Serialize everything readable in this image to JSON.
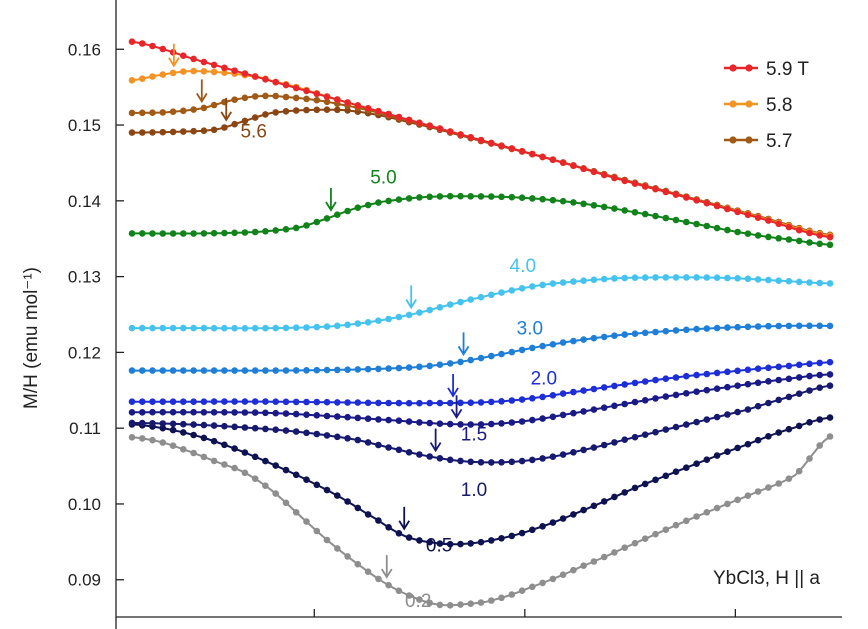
{
  "chart_data": {
    "type": "line",
    "ylabel": "M/H (emu mol⁻¹)",
    "annotation": "YbCl3, H || a",
    "ylim": [
      0.0835,
      0.1665
    ],
    "xlim": [
      0,
      1
    ],
    "yticks": [
      "0.09",
      "0.10",
      "0.11",
      "0.12",
      "0.13",
      "0.14",
      "0.15",
      "0.16"
    ],
    "legend": {
      "placement": "top-right",
      "entries": [
        "5.9 T",
        "5.8",
        "5.7"
      ]
    },
    "series": [
      {
        "name": "5.9 T",
        "color": "#e8262a",
        "label": "",
        "x": [
          0,
          0.1,
          0.2,
          0.3,
          0.4,
          0.5,
          0.6,
          0.7,
          0.8,
          0.9,
          1.0
        ],
        "y": [
          0.161,
          0.1584,
          0.1558,
          0.1532,
          0.1506,
          0.148,
          0.1455,
          0.1428,
          0.1403,
          0.1377,
          0.1352
        ]
      },
      {
        "name": "5.8",
        "color": "#f39323",
        "label": "",
        "x": [
          0,
          0.04,
          0.08,
          0.12,
          0.16,
          0.2,
          0.3,
          0.4,
          0.5,
          0.6,
          0.7,
          0.8,
          0.9,
          1.0
        ],
        "y": [
          0.1559,
          0.1566,
          0.1571,
          0.157,
          0.1566,
          0.1558,
          0.1532,
          0.1506,
          0.148,
          0.1455,
          0.1428,
          0.1403,
          0.1378,
          0.1354
        ],
        "transition_x": 0.06
      },
      {
        "name": "5.7",
        "color": "#a05a16",
        "label": "",
        "x": [
          0,
          0.05,
          0.1,
          0.14,
          0.18,
          0.22,
          0.3,
          0.4,
          0.5,
          0.6,
          0.7,
          0.8,
          0.9,
          1.0
        ],
        "y": [
          0.1516,
          0.1517,
          0.1522,
          0.1532,
          0.1538,
          0.1537,
          0.1527,
          0.1505,
          0.148,
          0.1455,
          0.1429,
          0.1404,
          0.1379,
          0.1355
        ],
        "transition_x": 0.1
      },
      {
        "name": "",
        "color": "#8b4513",
        "label": "5.6",
        "x": [
          0,
          0.06,
          0.12,
          0.16,
          0.2,
          0.26,
          0.32,
          0.4,
          0.5,
          0.6,
          0.7,
          0.8,
          0.9,
          1.0
        ],
        "y": [
          0.149,
          0.1491,
          0.1494,
          0.1505,
          0.1516,
          0.152,
          0.1518,
          0.1503,
          0.1479,
          0.1455,
          0.1429,
          0.1404,
          0.1379,
          0.1355
        ],
        "transition_x": 0.135
      },
      {
        "name": "",
        "color": "#12821b",
        "label": "5.0",
        "x": [
          0,
          0.1,
          0.18,
          0.24,
          0.28,
          0.32,
          0.36,
          0.42,
          0.48,
          0.56,
          0.64,
          0.72,
          0.8,
          0.88,
          0.95,
          1.0
        ],
        "y": [
          0.1357,
          0.1357,
          0.1359,
          0.1365,
          0.1377,
          0.139,
          0.1399,
          0.1405,
          0.1406,
          0.1404,
          0.1397,
          0.1385,
          0.1371,
          0.1357,
          0.1348,
          0.1342
        ],
        "transition_x": 0.285
      },
      {
        "name": "",
        "color": "#45c3ee",
        "label": "4.0",
        "x": [
          0,
          0.1,
          0.2,
          0.28,
          0.34,
          0.4,
          0.46,
          0.52,
          0.58,
          0.64,
          0.7,
          0.78,
          0.86,
          0.94,
          1.0
        ],
        "y": [
          0.1232,
          0.1232,
          0.1232,
          0.1234,
          0.124,
          0.125,
          0.1264,
          0.1277,
          0.1288,
          0.1294,
          0.1298,
          0.1299,
          0.1298,
          0.1294,
          0.1291
        ],
        "transition_x": 0.4
      },
      {
        "name": "",
        "color": "#1f7fd6",
        "label": "3.0",
        "x": [
          0,
          0.1,
          0.2,
          0.3,
          0.4,
          0.46,
          0.52,
          0.58,
          0.64,
          0.7,
          0.78,
          0.86,
          0.94,
          1.0
        ],
        "y": [
          0.1176,
          0.1176,
          0.1176,
          0.1177,
          0.118,
          0.1186,
          0.1196,
          0.1207,
          0.1216,
          0.1223,
          0.1229,
          0.1233,
          0.1235,
          0.1235
        ],
        "transition_x": 0.475
      },
      {
        "name": "",
        "color": "#1d2ed6",
        "label": "2.0",
        "x": [
          0,
          0.1,
          0.2,
          0.3,
          0.4,
          0.5,
          0.56,
          0.62,
          0.7,
          0.78,
          0.86,
          0.94,
          1.0
        ],
        "y": [
          0.1135,
          0.1135,
          0.1135,
          0.1134,
          0.1133,
          0.1134,
          0.1138,
          0.1146,
          0.1157,
          0.1167,
          0.1175,
          0.1182,
          0.1187
        ],
        "transition_x": 0.46
      },
      {
        "name": "",
        "color": "#1a1a86",
        "label": "1.5",
        "x": [
          0,
          0.1,
          0.2,
          0.3,
          0.38,
          0.44,
          0.5,
          0.56,
          0.62,
          0.7,
          0.78,
          0.86,
          0.94,
          1.0
        ],
        "y": [
          0.1121,
          0.1121,
          0.112,
          0.1115,
          0.111,
          0.1106,
          0.1105,
          0.1109,
          0.1118,
          0.1131,
          0.1144,
          0.1155,
          0.1165,
          0.1171
        ],
        "transition_x": 0.465
      },
      {
        "name": "",
        "color": "#16196e",
        "label": "1.0",
        "x": [
          0,
          0.08,
          0.16,
          0.24,
          0.32,
          0.38,
          0.43,
          0.48,
          0.53,
          0.58,
          0.64,
          0.72,
          0.8,
          0.88,
          0.94,
          1.0
        ],
        "y": [
          0.1107,
          0.1105,
          0.1101,
          0.1095,
          0.1085,
          0.1072,
          0.1062,
          0.1056,
          0.1055,
          0.1059,
          0.107,
          0.1088,
          0.1106,
          0.1124,
          0.1141,
          0.1156
        ],
        "transition_x": 0.435
      },
      {
        "name": "",
        "color": "#0e1250",
        "label": "0.5",
        "x": [
          0,
          0.05,
          0.1,
          0.15,
          0.2,
          0.25,
          0.3,
          0.35,
          0.39,
          0.43,
          0.47,
          0.52,
          0.58,
          0.65,
          0.72,
          0.8,
          0.88,
          0.95,
          1.0
        ],
        "y": [
          0.1105,
          0.1099,
          0.1088,
          0.1072,
          0.1053,
          0.1032,
          0.1008,
          0.098,
          0.0958,
          0.0949,
          0.0947,
          0.0953,
          0.0968,
          0.0993,
          0.1021,
          0.105,
          0.1078,
          0.1101,
          0.1114
        ],
        "transition_x": 0.39
      },
      {
        "name": "",
        "color": "#8e8e8e",
        "label": "0.2",
        "x": [
          0,
          0.04,
          0.08,
          0.12,
          0.16,
          0.2,
          0.24,
          0.28,
          0.32,
          0.36,
          0.4,
          0.44,
          0.48,
          0.52,
          0.58,
          0.64,
          0.72,
          0.8,
          0.88,
          0.95,
          1.0
        ],
        "y": [
          0.1088,
          0.1082,
          0.107,
          0.1056,
          0.1042,
          0.1018,
          0.0985,
          0.0952,
          0.0923,
          0.0897,
          0.0878,
          0.0867,
          0.0868,
          0.0874,
          0.0893,
          0.0916,
          0.0948,
          0.098,
          0.101,
          0.1038,
          0.1089
        ],
        "transition_x": 0.365
      }
    ]
  }
}
